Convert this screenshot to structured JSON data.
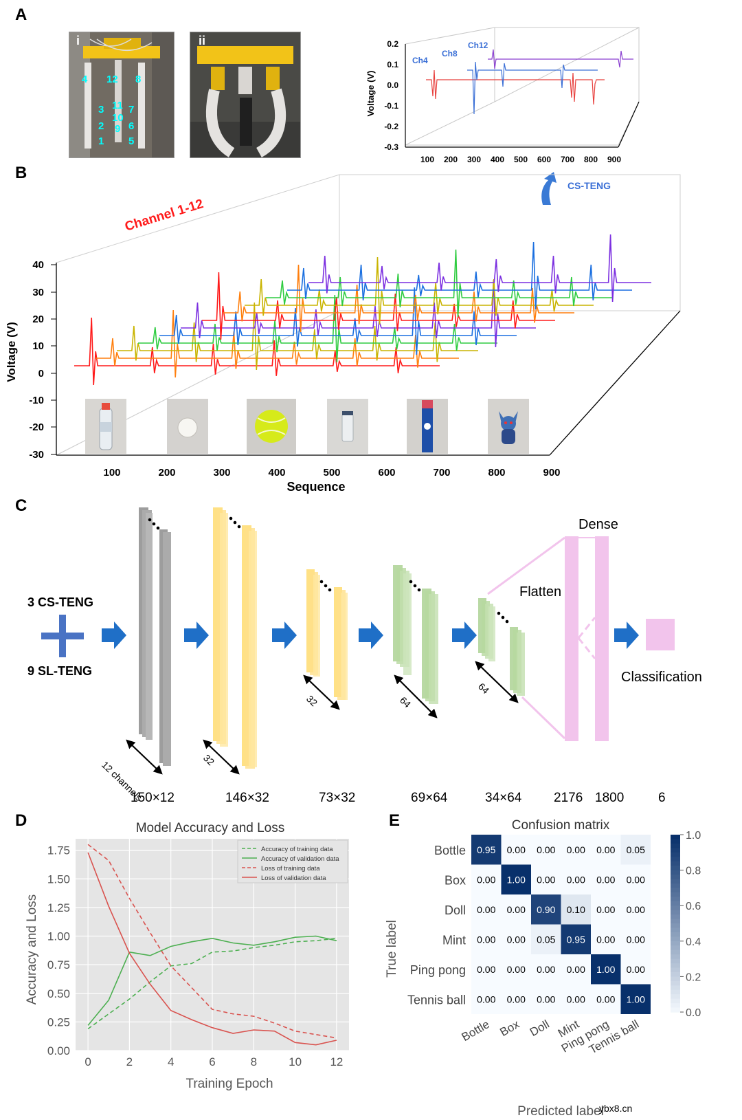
{
  "panels": {
    "a": "A",
    "b": "B",
    "c": "C",
    "d": "D",
    "e": "E"
  },
  "panelA": {
    "photo_i_label": "i",
    "photo_ii_label": "ii",
    "channel_numbers": [
      {
        "t": "4"
      },
      {
        "t": "12"
      },
      {
        "t": "8"
      },
      {
        "t": "3"
      },
      {
        "t": "11"
      },
      {
        "t": "7"
      },
      {
        "t": "2"
      },
      {
        "t": "10"
      },
      {
        "t": "6"
      },
      {
        "t": "1"
      },
      {
        "t": "9"
      },
      {
        "t": "5"
      }
    ],
    "inset": {
      "ylabel": "Voltage (V)",
      "yticks": [
        "0.2",
        "0.1",
        "0.0",
        "-0.1",
        "-0.2",
        "-0.3"
      ],
      "xticks": [
        "100",
        "200",
        "300",
        "400",
        "500",
        "600",
        "700",
        "800",
        "900"
      ],
      "series_labels": [
        "Ch4",
        "Ch8",
        "Ch12"
      ],
      "series_colors": [
        "#e8423f",
        "#3a6fd6",
        "#8a3fd0"
      ]
    },
    "cs_teng_label": "CS-TENG"
  },
  "panelB": {
    "title": "Channel 1-12",
    "ylabel": "Voltage (V)",
    "xlabel": "Sequence",
    "yticks": [
      "40",
      "30",
      "20",
      "10",
      "0",
      "-10",
      "-20",
      "-30"
    ],
    "xticks": [
      "100",
      "200",
      "300",
      "400",
      "500",
      "600",
      "700",
      "800",
      "900"
    ],
    "channel_colors": [
      "#ff1a1a",
      "#ff7f0e",
      "#c9b400",
      "#2ecc40",
      "#1a6fe0",
      "#7b2fe0",
      "#ff1a1a",
      "#ff7f0e",
      "#c9b400",
      "#2ecc40",
      "#1a6fe0",
      "#7b2fe0"
    ],
    "objects": [
      "bottle-photo",
      "ping-pong-ball-photo",
      "tennis-ball-photo",
      "glass-jar-photo",
      "mint-box-photo",
      "doll-photo"
    ]
  },
  "panelC": {
    "input_top": "3 CS-TENG",
    "input_bottom": "9 SL-TENG",
    "dense_label": "Dense",
    "flatten_label": "Flatten",
    "classification_label": "Classification",
    "depth_labels": [
      "12 channels",
      "32",
      "32",
      "64",
      "64"
    ],
    "dims": [
      "150×12",
      "146×32",
      "73×32",
      "69×64",
      "34×64",
      "2176",
      "1800",
      "6"
    ],
    "colors": {
      "gray": "#a0a0a0",
      "yellow": "#ffd966",
      "green": "#a8d08d",
      "pink": "#f2c4ec",
      "arrow": "#1f6fc7"
    }
  },
  "panelD": {
    "chart_data": {
      "type": "line",
      "title": "Model Accuracy and Loss",
      "xlabel": "Training Epoch",
      "ylabel": "Accuracy and Loss",
      "xlim": [
        -0.6,
        12.6
      ],
      "ylim": [
        0,
        1.85
      ],
      "xticks": [
        0,
        2,
        4,
        6,
        8,
        10,
        12
      ],
      "yticks": [
        0.0,
        0.25,
        0.5,
        0.75,
        1.0,
        1.25,
        1.5,
        1.75
      ],
      "x": [
        0,
        1,
        2,
        3,
        4,
        5,
        6,
        7,
        8,
        9,
        10,
        11,
        12
      ],
      "series": [
        {
          "name": "Accuracy of training data",
          "color": "#4caf50",
          "dash": true,
          "values": [
            0.19,
            0.32,
            0.45,
            0.6,
            0.74,
            0.76,
            0.86,
            0.87,
            0.9,
            0.92,
            0.95,
            0.96,
            0.98
          ]
        },
        {
          "name": "Accuracy of validation data",
          "color": "#4caf50",
          "dash": false,
          "values": [
            0.22,
            0.44,
            0.86,
            0.83,
            0.91,
            0.95,
            0.98,
            0.94,
            0.92,
            0.95,
            0.99,
            1.0,
            0.96
          ]
        },
        {
          "name": "Loss of training data",
          "color": "#d9534f",
          "dash": true,
          "values": [
            1.8,
            1.66,
            1.33,
            1.03,
            0.74,
            0.55,
            0.36,
            0.32,
            0.3,
            0.24,
            0.17,
            0.14,
            0.11
          ]
        },
        {
          "name": "Loss of validation data",
          "color": "#d9534f",
          "dash": false,
          "values": [
            1.73,
            1.26,
            0.85,
            0.58,
            0.35,
            0.27,
            0.2,
            0.15,
            0.18,
            0.17,
            0.07,
            0.05,
            0.09
          ]
        }
      ],
      "legend": "top-right",
      "grid": true
    }
  },
  "panelE": {
    "chart_data": {
      "type": "heatmap",
      "title": "Confusion matrix",
      "xlabel": "Predicted label",
      "ylabel": "True label",
      "rows": [
        "Bottle",
        "Box",
        "Doll",
        "Mint",
        "Ping pong",
        "Tennis ball"
      ],
      "cols": [
        "Bottle",
        "Box",
        "Doll",
        "Mint",
        "Ping pong",
        "Tennis ball"
      ],
      "values": [
        [
          0.95,
          0.0,
          0.0,
          0.0,
          0.0,
          0.05
        ],
        [
          0.0,
          1.0,
          0.0,
          0.0,
          0.0,
          0.0
        ],
        [
          0.0,
          0.0,
          0.9,
          0.1,
          0.0,
          0.0
        ],
        [
          0.0,
          0.0,
          0.05,
          0.95,
          0.0,
          0.0
        ],
        [
          0.0,
          0.0,
          0.0,
          0.0,
          1.0,
          0.0
        ],
        [
          0.0,
          0.0,
          0.0,
          0.0,
          0.0,
          1.0
        ]
      ],
      "colorbar_ticks": [
        "1.0",
        "0.8",
        "0.6",
        "0.4",
        "0.2",
        "0.0"
      ],
      "colormap": [
        "#f7fbff",
        "#08306b"
      ]
    }
  },
  "watermark": "ybx8.cn"
}
